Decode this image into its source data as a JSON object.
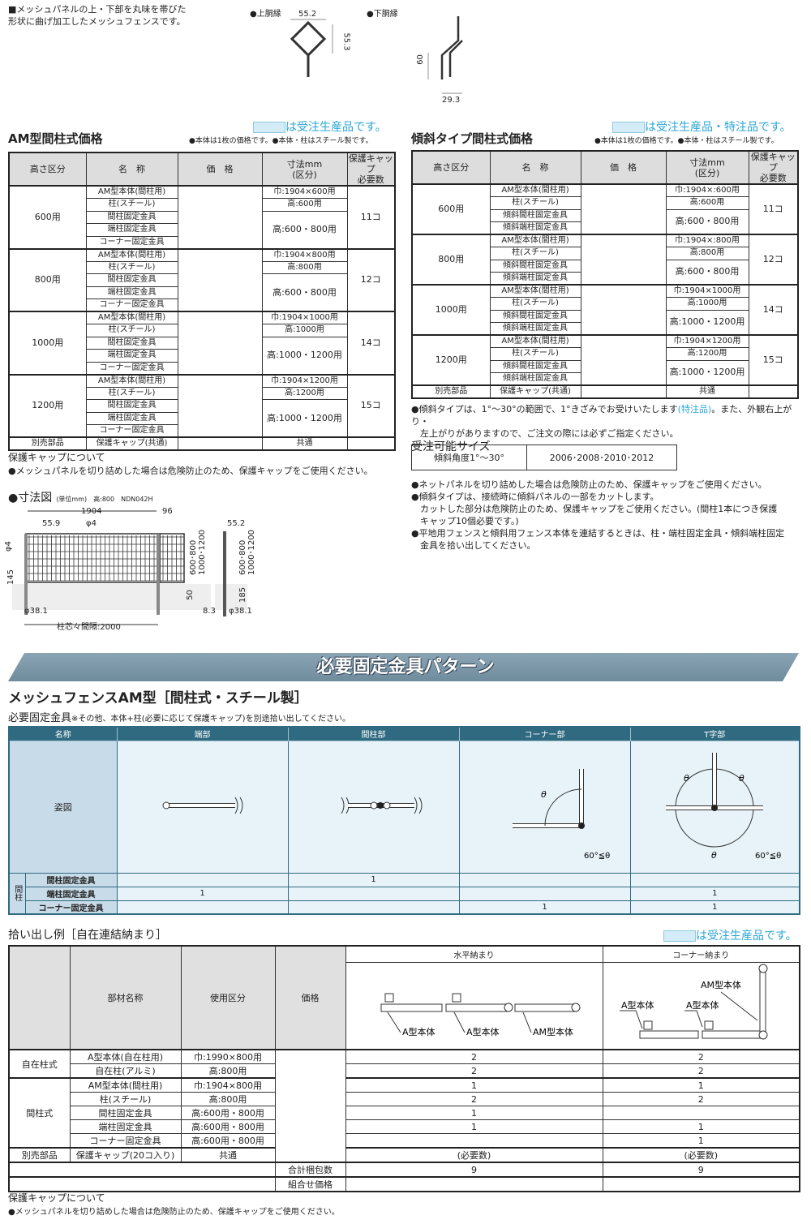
{
  "intro": {
    "line1": "■メッシュパネルの上・下部を丸味を帯びた",
    "line2": "形状に曲げ加工したメッシュフェンスです。"
  },
  "profiles": {
    "upper_label": "●上胴縁",
    "lower_label": "●下胴縁",
    "upper_w": "55.2",
    "upper_h": "55.3",
    "lower_h": "60",
    "lower_w": "29.3"
  },
  "left_table": {
    "title": "AM型間柱式価格",
    "badge": "は受注生産品です。",
    "note": "●本体は1枚の価格です。●本体・柱はスチール製です。",
    "headers": [
      "高さ区分",
      "名　称",
      "価　格",
      "寸法mm\n(区分)",
      "保護キャップ\n必要数"
    ],
    "groups": [
      {
        "height": "600用",
        "items": [
          "AM型本体(間柱用)",
          "柱(スチール)",
          "間柱固定金具",
          "端柱固定金具",
          "コーナー固定金具"
        ],
        "dims": [
          "巾:1904×600用",
          "高:600用",
          "高:600・800用"
        ],
        "caps": "11コ"
      },
      {
        "height": "800用",
        "items": [
          "AM型本体(間柱用)",
          "柱(スチール)",
          "間柱固定金具",
          "端柱固定金具",
          "コーナー固定金具"
        ],
        "dims": [
          "巾:1904×800用",
          "高:800用",
          "高:600・800用"
        ],
        "caps": "12コ"
      },
      {
        "height": "1000用",
        "items": [
          "AM型本体(間柱用)",
          "柱(スチール)",
          "間柱固定金具",
          "端柱固定金具",
          "コーナー固定金具"
        ],
        "dims": [
          "巾:1904×1000用",
          "高:1000用",
          "高:1000・1200用"
        ],
        "caps": "14コ"
      },
      {
        "height": "1200用",
        "items": [
          "AM型本体(間柱用)",
          "柱(スチール)",
          "間柱固定金具",
          "端柱固定金具",
          "コーナー固定金具"
        ],
        "dims": [
          "巾:1904×1200用",
          "高:1200用",
          "高:1000・1200用"
        ],
        "caps": "15コ"
      }
    ],
    "extra": {
      "label": "別売部品",
      "item": "保護キャップ(共通)",
      "dim": "共通"
    }
  },
  "right_table": {
    "title": "傾斜タイプ間柱式価格",
    "badge": "は受注生産品・特注品です。",
    "note": "●本体は1枚の価格です。●本体・柱はスチール製です。",
    "headers": [
      "高さ区分",
      "名　称",
      "価　格",
      "寸法mm\n(区分)",
      "保護キャップ\n必要数"
    ],
    "groups": [
      {
        "height": "600用",
        "items": [
          "AM型本体(間柱用)",
          "柱(スチール)",
          "傾斜間柱固定金具",
          "傾斜端柱固定金具"
        ],
        "dims": [
          "巾:1904×:600用",
          "高:600用",
          "高:600・800用"
        ],
        "caps": "11コ"
      },
      {
        "height": "800用",
        "items": [
          "AM型本体(間柱用)",
          "柱(スチール)",
          "傾斜間柱固定金具",
          "傾斜端柱固定金具"
        ],
        "dims": [
          "巾:1904×:800用",
          "高:800用",
          "高:600・800用"
        ],
        "caps": "12コ"
      },
      {
        "height": "1000用",
        "items": [
          "AM型本体(間柱用)",
          "柱(スチール)",
          "傾斜間柱固定金具",
          "傾斜端柱固定金具"
        ],
        "dims": [
          "巾:1904×1000用",
          "高:1000用",
          "高:1000・1200用"
        ],
        "caps": "14コ"
      },
      {
        "height": "1200用",
        "items": [
          "AM型本体(間柱用)",
          "柱(スチール)",
          "傾斜間柱固定金具",
          "傾斜端柱固定金具"
        ],
        "dims": [
          "巾:1904×1200用",
          "高:1200用",
          "高:1000・1200用"
        ],
        "caps": "15コ"
      }
    ],
    "extra": {
      "label": "別売部品",
      "item": "保護キャップ(共通)",
      "dim": "共通"
    }
  },
  "cap_note": {
    "title": "保護キャップについて",
    "text": "●メッシュパネルを切り詰めした場合は危険防止のため、保護キャップをご使用ください。"
  },
  "dimension": {
    "title": "●寸法図",
    "unit": "(単位mm)　高:800　NDN042H",
    "w": "1904",
    "gap": "96",
    "pitch": "55.9",
    "wire": "φ4",
    "wire2": "φ4",
    "h145": "145",
    "hrange1": "600･800",
    "hrange2": "1000･1200",
    "d50": "50",
    "post": "φ38.1",
    "span": "柱芯々間隔:2000",
    "side_w": "55.2",
    "side_d": "8.3",
    "side_185": "185",
    "side_post": "φ38.1"
  },
  "right_notes": {
    "n1a": "●傾斜タイプは、1°～30°の範囲で、1°きざみでお受けいたします",
    "n1b": "(特注品)",
    "n1c": "。また、外観右上がり・",
    "n1d": "左上がりがありますので、ご注文の際には必ずご指定ください。",
    "sizes_title": "受注可能サイズ",
    "size_label": "傾斜角度1°～30°",
    "size_values": "2006･2008･2010･2012",
    "n2": "●ネットパネルを切り詰めした場合は危険防止のため、保護キャップをご使用ください。",
    "n3": "●傾斜タイプは、接続時に傾斜パネルの一部をカットします。",
    "n3b": "カットした部分は危険防止のため、保護キャップをご使用ください。(間柱1本につき保護",
    "n3c": "キャップ10個必要です。)",
    "n4": "●平地用フェンスと傾斜用フェンス本体を連結するときは、柱・端柱固定金具・傾斜端柱固定",
    "n4b": "金具を拾い出してください。"
  },
  "banner": "必要固定金具パターン",
  "pattern": {
    "title": "メッシュフェンスAM型［間柱式・スチール製］",
    "subtitle": "必要固定金具",
    "subnote": "※その他、本体+柱(必要に応じて保護キャップ)を別途拾い出してください。",
    "headers": [
      "名称",
      "端部",
      "間柱部",
      "コーナー部",
      "T字部"
    ],
    "figure_label": "姿図",
    "theta": "θ",
    "cond": "60°≦θ",
    "group_label": "間柱",
    "rows": [
      {
        "name": "間柱固定金具",
        "values": [
          "",
          "1",
          "",
          ""
        ]
      },
      {
        "name": "端柱固定金具",
        "values": [
          "1",
          "",
          "",
          "1"
        ]
      },
      {
        "name": "コーナー固定金具",
        "values": [
          "",
          "",
          "1",
          "1"
        ]
      }
    ]
  },
  "example": {
    "title": "拾い出し例［自在連結納まり］",
    "badge": "は受注生産品です。",
    "headers": [
      "部材名称",
      "使用区分",
      "価格",
      "水平納まり",
      "コーナー納まり"
    ],
    "diagram_labels": {
      "h1": "A型本体",
      "h2": "A型本体",
      "h3": "AM型本体",
      "c1": "A型本体",
      "c2": "A型本体",
      "c3": "AM型本体"
    },
    "groups": [
      {
        "label": "自在柱式",
        "rows": [
          [
            "A型本体(自在柱用)",
            "巾:1990×800用",
            "2",
            "2"
          ],
          [
            "自在柱(アルミ)",
            "高:800用",
            "2",
            "2"
          ]
        ]
      },
      {
        "label": "間柱式",
        "rows": [
          [
            "AM型本体(間柱用)",
            "巾:1904×800用",
            "1",
            "1"
          ],
          [
            "柱(スチール)",
            "高:800用",
            "2",
            "2"
          ],
          [
            "間柱固定金具",
            "高:600用・800用",
            "1",
            ""
          ],
          [
            "端柱固定金具",
            "高:600用・800用",
            "1",
            "1"
          ],
          [
            "コーナー固定金具",
            "高:600用・800用",
            "",
            "1"
          ]
        ]
      },
      {
        "label": "別売部品",
        "rows": [
          [
            "保護キャップ(20コ入り)",
            "共通",
            "(必要数)",
            "(必要数)"
          ]
        ]
      }
    ],
    "total_label": "合計梱包数",
    "total": [
      "9",
      "9"
    ],
    "combo_label": "組合せ価格"
  },
  "footer": {
    "title": "保護キャップについて",
    "text": "●メッシュパネルを切り詰めした場合は危険防止のため、保護キャップをご使用ください。"
  },
  "colors": {
    "accent": "#2aa6d6",
    "teal": "#2f6a80",
    "light_blue": "#e8f3f9"
  }
}
